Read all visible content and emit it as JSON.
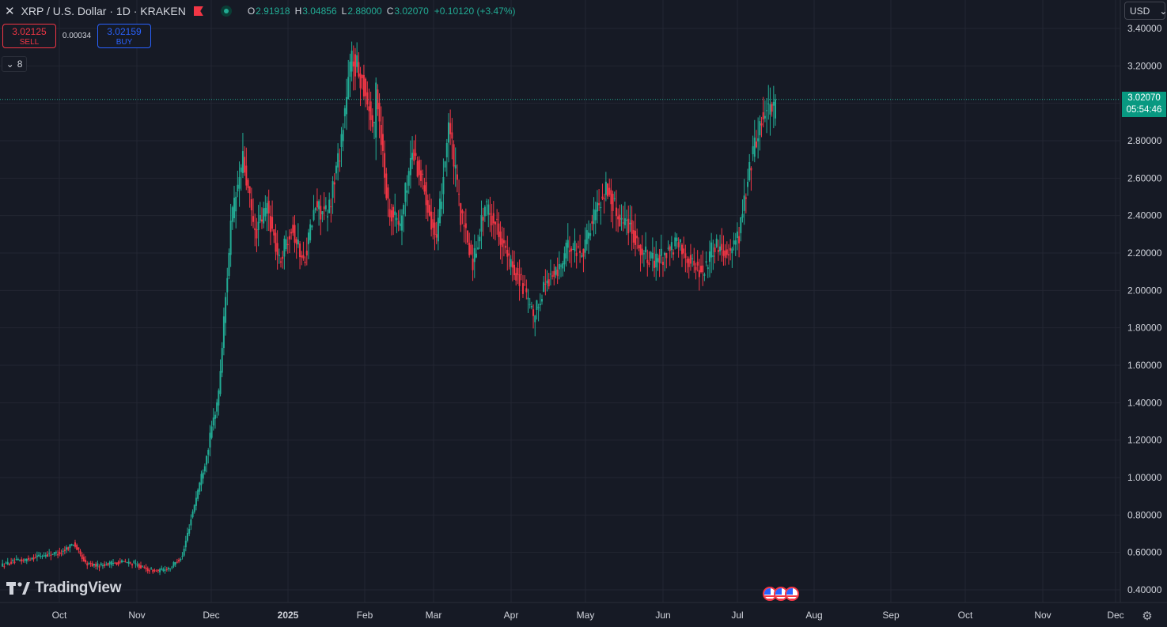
{
  "symbol": {
    "title": "XRP / U.S. Dollar · 1D · KRAKEN",
    "close_icon": "close-icon",
    "flag_icon": "flag-icon",
    "status_icon": "market-open-dot-icon"
  },
  "ohlc": {
    "o_label": "O",
    "o_value": "2.91918",
    "h_label": "H",
    "h_value": "3.04856",
    "l_label": "L",
    "l_value": "2.88000",
    "c_label": "C",
    "c_value": "3.02070",
    "change": "+0.10120 (+3.47%)"
  },
  "trade": {
    "sell_price": "3.02125",
    "sell_label": "SELL",
    "spread": "0.00034",
    "buy_price": "3.02159",
    "buy_label": "BUY"
  },
  "collapse": {
    "count": "8"
  },
  "currency": {
    "label": "USD"
  },
  "last_price": {
    "price": "3.02070",
    "countdown": "05:54:46"
  },
  "logo": {
    "text": "TradingView"
  },
  "colors": {
    "up": "#22ab94",
    "down": "#f23645",
    "grid": "#232632",
    "bg": "#161a25",
    "text": "#d1d4dc"
  },
  "chart_data": {
    "type": "candlestick",
    "y_ticks": [
      "3.40000",
      "3.20000",
      "3.00000",
      "2.80000",
      "2.60000",
      "2.40000",
      "2.20000",
      "2.00000",
      "1.80000",
      "1.60000",
      "1.40000",
      "1.20000",
      "1.00000",
      "0.80000",
      "0.60000",
      "0.40000"
    ],
    "x_ticks": [
      "Oct",
      "Nov",
      "Dec",
      "2025",
      "Feb",
      "Mar",
      "Apr",
      "May",
      "Jun",
      "Jul",
      "Aug",
      "Sep",
      "Oct",
      "Nov",
      "Dec"
    ],
    "ylim": [
      0.4,
      3.4
    ],
    "last_close": 3.0207,
    "weekly_path": [
      [
        0.53,
        0.55
      ],
      [
        0.55,
        0.56
      ],
      [
        0.56,
        0.58
      ],
      [
        0.58,
        0.59
      ],
      [
        0.59,
        0.6
      ],
      [
        0.6,
        0.65
      ],
      [
        0.65,
        0.54
      ],
      [
        0.54,
        0.53
      ],
      [
        0.53,
        0.54
      ],
      [
        0.54,
        0.55
      ],
      [
        0.55,
        0.54
      ],
      [
        0.54,
        0.51
      ],
      [
        0.51,
        0.5
      ],
      [
        0.5,
        0.52
      ],
      [
        0.52,
        0.58
      ],
      [
        0.58,
        0.86
      ],
      [
        0.86,
        1.12
      ],
      [
        1.12,
        1.45
      ],
      [
        1.45,
        2.35
      ],
      [
        2.35,
        2.7
      ],
      [
        2.7,
        2.3
      ],
      [
        2.3,
        2.45
      ],
      [
        2.45,
        2.15
      ],
      [
        2.15,
        2.35
      ],
      [
        2.35,
        2.15
      ],
      [
        2.15,
        2.45
      ],
      [
        2.45,
        2.4
      ],
      [
        2.4,
        2.75
      ],
      [
        2.75,
        3.25
      ],
      [
        3.25,
        3.1
      ],
      [
        3.1,
        2.8
      ],
      [
        3.1,
        2.45
      ],
      [
        2.45,
        2.35
      ],
      [
        2.35,
        2.75
      ],
      [
        2.75,
        2.55
      ],
      [
        2.55,
        2.25
      ],
      [
        2.25,
        2.9
      ],
      [
        2.9,
        2.4
      ],
      [
        2.4,
        2.15
      ],
      [
        2.15,
        2.45
      ],
      [
        2.45,
        2.35
      ],
      [
        2.35,
        2.15
      ],
      [
        2.15,
        2.05
      ],
      [
        2.05,
        1.85
      ],
      [
        1.85,
        2.05
      ],
      [
        2.05,
        2.1
      ],
      [
        2.1,
        2.25
      ],
      [
        2.25,
        2.2
      ],
      [
        2.2,
        2.4
      ],
      [
        2.4,
        2.55
      ],
      [
        2.55,
        2.4
      ],
      [
        2.4,
        2.35
      ],
      [
        2.35,
        2.2
      ],
      [
        2.2,
        2.15
      ],
      [
        2.15,
        2.2
      ],
      [
        2.2,
        2.25
      ],
      [
        2.25,
        2.15
      ],
      [
        2.15,
        2.1
      ],
      [
        2.1,
        2.25
      ],
      [
        2.25,
        2.2
      ],
      [
        2.2,
        2.3
      ],
      [
        2.3,
        2.7
      ],
      [
        2.7,
        2.95
      ],
      [
        2.95,
        3.02
      ]
    ]
  }
}
